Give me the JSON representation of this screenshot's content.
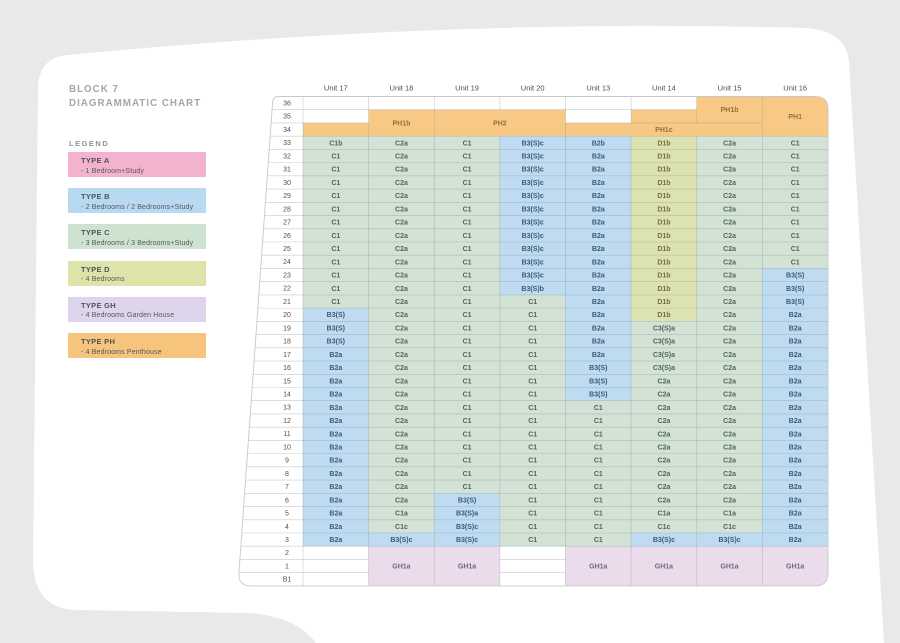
{
  "page": {
    "background_color": "#e9e9ea",
    "card_color": "#ffffff"
  },
  "title": {
    "line1": "BLOCK 7",
    "line2": "DIAGRAMMATIC CHART"
  },
  "legend": {
    "label": "LEGEND",
    "items": [
      {
        "name": "TYPE A",
        "desc": "- 1 Bedroom+Study",
        "color": "#f3b3cf"
      },
      {
        "name": "TYPE B",
        "desc": "- 2 Bedrooms / 2 Bedrooms+Study",
        "color": "#b7d9f1"
      },
      {
        "name": "TYPE C",
        "desc": "- 3 Bedrooms / 3 Bedrooms+Study",
        "color": "#cde3d0"
      },
      {
        "name": "TYPE D",
        "desc": "- 4 Bedrooms",
        "color": "#dee4a9"
      },
      {
        "name": "TYPE GH",
        "desc": "- 4 Bedrooms Garden House",
        "color": "#ded4ec"
      },
      {
        "name": "TYPE PH",
        "desc": "- 4 Bedrooms Penthouse",
        "color": "#f6c47d"
      }
    ]
  },
  "chart_data": {
    "type": "table",
    "unit_headers": [
      "Unit 17",
      "Unit 18",
      "Unit 19",
      "Unit 20",
      "Unit 13",
      "Unit 14",
      "Unit 15",
      "Unit 16"
    ],
    "floors": [
      "36",
      "35",
      "34",
      "33",
      "32",
      "31",
      "30",
      "29",
      "28",
      "27",
      "26",
      "25",
      "24",
      "23",
      "22",
      "21",
      "20",
      "19",
      "18",
      "17",
      "16",
      "15",
      "14",
      "13",
      "12",
      "11",
      "10",
      "9",
      "8",
      "7",
      "6",
      "5",
      "4",
      "3",
      "2",
      "1",
      "B1"
    ],
    "cell_fill_colors": {
      "B": "#bedbf1",
      "C": "#d2e2d5",
      "D": "#dde3b0",
      "GH": "#ebdceb",
      "PH": "#f8c985"
    },
    "merged_blocks": [
      {
        "label": "PH1b",
        "type": "PH",
        "col_start": 6,
        "col_end": 6,
        "floor_start": "36",
        "floor_end": "35"
      },
      {
        "label": "PH1",
        "type": "PH",
        "col_start": 7,
        "col_end": 7,
        "floor_start": "36",
        "floor_end": "34"
      },
      {
        "label": "PH1b",
        "type": "PH",
        "col_start": 1,
        "col_end": 1,
        "floor_start": "35",
        "floor_end": "34"
      },
      {
        "label": "PH2",
        "type": "PH",
        "col_start": 2,
        "col_end": 3,
        "floor_start": "35",
        "floor_end": "34"
      },
      {
        "label": "",
        "type": "PH",
        "col_start": 5,
        "col_end": 5,
        "floor_start": "35",
        "floor_end": "35"
      },
      {
        "label": "",
        "type": "PH",
        "col_start": 0,
        "col_end": 0,
        "floor_start": "34",
        "floor_end": "34"
      },
      {
        "label": "PH1c",
        "type": "PH",
        "col_start": 4,
        "col_end": 6,
        "floor_start": "34",
        "floor_end": "34"
      },
      {
        "label": "GH1a",
        "type": "GH",
        "col_start": 1,
        "col_end": 1,
        "floor_start": "2",
        "floor_end": "B1"
      },
      {
        "label": "GH1a",
        "type": "GH",
        "col_start": 2,
        "col_end": 2,
        "floor_start": "2",
        "floor_end": "B1"
      },
      {
        "label": "GH1a",
        "type": "GH",
        "col_start": 4,
        "col_end": 4,
        "floor_start": "2",
        "floor_end": "B1"
      },
      {
        "label": "GH1a",
        "type": "GH",
        "col_start": 5,
        "col_end": 5,
        "floor_start": "2",
        "floor_end": "B1"
      },
      {
        "label": "GH1a",
        "type": "GH",
        "col_start": 6,
        "col_end": 6,
        "floor_start": "2",
        "floor_end": "B1"
      },
      {
        "label": "GH1a",
        "type": "GH",
        "col_start": 7,
        "col_end": 7,
        "floor_start": "2",
        "floor_end": "B1"
      }
    ],
    "rows": [
      {
        "floor": "33",
        "cells": [
          "C1b",
          "C2a",
          "C1",
          "B3(S)c",
          "B2b",
          "D1b",
          "C2a",
          "C1"
        ]
      },
      {
        "floor": "32",
        "cells": [
          "C1",
          "C2a",
          "C1",
          "B3(S)c",
          "B2a",
          "D1b",
          "C2a",
          "C1"
        ]
      },
      {
        "floor": "31",
        "cells": [
          "C1",
          "C2a",
          "C1",
          "B3(S)c",
          "B2a",
          "D1b",
          "C2a",
          "C1"
        ]
      },
      {
        "floor": "30",
        "cells": [
          "C1",
          "C2a",
          "C1",
          "B3(S)c",
          "B2a",
          "D1b",
          "C2a",
          "C1"
        ]
      },
      {
        "floor": "29",
        "cells": [
          "C1",
          "C2a",
          "C1",
          "B3(S)c",
          "B2a",
          "D1b",
          "C2a",
          "C1"
        ]
      },
      {
        "floor": "28",
        "cells": [
          "C1",
          "C2a",
          "C1",
          "B3(S)c",
          "B2a",
          "D1b",
          "C2a",
          "C1"
        ]
      },
      {
        "floor": "27",
        "cells": [
          "C1",
          "C2a",
          "C1",
          "B3(S)c",
          "B2a",
          "D1b",
          "C2a",
          "C1"
        ]
      },
      {
        "floor": "26",
        "cells": [
          "C1",
          "C2a",
          "C1",
          "B3(S)c",
          "B2a",
          "D1b",
          "C2a",
          "C1"
        ]
      },
      {
        "floor": "25",
        "cells": [
          "C1",
          "C2a",
          "C1",
          "B3(S)c",
          "B2a",
          "D1b",
          "C2a",
          "C1"
        ]
      },
      {
        "floor": "24",
        "cells": [
          "C1",
          "C2a",
          "C1",
          "B3(S)c",
          "B2a",
          "D1b",
          "C2a",
          "C1"
        ]
      },
      {
        "floor": "23",
        "cells": [
          "C1",
          "C2a",
          "C1",
          "B3(S)c",
          "B2a",
          "D1b",
          "C2a",
          "B3(S)"
        ]
      },
      {
        "floor": "22",
        "cells": [
          "C1",
          "C2a",
          "C1",
          "B3(S)b",
          "B2a",
          "D1b",
          "C2a",
          "B3(S)"
        ]
      },
      {
        "floor": "21",
        "cells": [
          "C1",
          "C2a",
          "C1",
          "C1",
          "B2a",
          "D1b",
          "C2a",
          "B3(S)"
        ]
      },
      {
        "floor": "20",
        "cells": [
          "B3(S)",
          "C2a",
          "C1",
          "C1",
          "B2a",
          "D1b",
          "C2a",
          "B2a"
        ]
      },
      {
        "floor": "19",
        "cells": [
          "B3(S)",
          "C2a",
          "C1",
          "C1",
          "B2a",
          "C3(S)a",
          "C2a",
          "B2a"
        ]
      },
      {
        "floor": "18",
        "cells": [
          "B3(S)",
          "C2a",
          "C1",
          "C1",
          "B2a",
          "C3(S)a",
          "C2a",
          "B2a"
        ]
      },
      {
        "floor": "17",
        "cells": [
          "B2a",
          "C2a",
          "C1",
          "C1",
          "B2a",
          "C3(S)a",
          "C2a",
          "B2a"
        ]
      },
      {
        "floor": "16",
        "cells": [
          "B2a",
          "C2a",
          "C1",
          "C1",
          "B3(S)",
          "C3(S)a",
          "C2a",
          "B2a"
        ]
      },
      {
        "floor": "15",
        "cells": [
          "B2a",
          "C2a",
          "C1",
          "C1",
          "B3(S)",
          "C2a",
          "C2a",
          "B2a"
        ]
      },
      {
        "floor": "14",
        "cells": [
          "B2a",
          "C2a",
          "C1",
          "C1",
          "B3(S)",
          "C2a",
          "C2a",
          "B2a"
        ]
      },
      {
        "floor": "13",
        "cells": [
          "B2a",
          "C2a",
          "C1",
          "C1",
          "C1",
          "C2a",
          "C2a",
          "B2a"
        ]
      },
      {
        "floor": "12",
        "cells": [
          "B2a",
          "C2a",
          "C1",
          "C1",
          "C1",
          "C2a",
          "C2a",
          "B2a"
        ]
      },
      {
        "floor": "11",
        "cells": [
          "B2a",
          "C2a",
          "C1",
          "C1",
          "C1",
          "C2a",
          "C2a",
          "B2a"
        ]
      },
      {
        "floor": "10",
        "cells": [
          "B2a",
          "C2a",
          "C1",
          "C1",
          "C1",
          "C2a",
          "C2a",
          "B2a"
        ]
      },
      {
        "floor": "9",
        "cells": [
          "B2a",
          "C2a",
          "C1",
          "C1",
          "C1",
          "C2a",
          "C2a",
          "B2a"
        ]
      },
      {
        "floor": "8",
        "cells": [
          "B2a",
          "C2a",
          "C1",
          "C1",
          "C1",
          "C2a",
          "C2a",
          "B2a"
        ]
      },
      {
        "floor": "7",
        "cells": [
          "B2a",
          "C2a",
          "C1",
          "C1",
          "C1",
          "C2a",
          "C2a",
          "B2a"
        ]
      },
      {
        "floor": "6",
        "cells": [
          "B2a",
          "C2a",
          "B3(S)",
          "C1",
          "C1",
          "C2a",
          "C2a",
          "B2a"
        ]
      },
      {
        "floor": "5",
        "cells": [
          "B2a",
          "C1a",
          "B3(S)a",
          "C1",
          "C1",
          "C1a",
          "C1a",
          "B2a"
        ]
      },
      {
        "floor": "4",
        "cells": [
          "B2a",
          "C1c",
          "B3(S)c",
          "C1",
          "C1",
          "C1c",
          "C1c",
          "B2a"
        ]
      },
      {
        "floor": "3",
        "cells": [
          "B2a",
          "B3(S)c",
          "B3(S)c",
          "C1",
          "C1",
          "B3(S)c",
          "B3(S)c",
          "B2a"
        ]
      }
    ]
  }
}
